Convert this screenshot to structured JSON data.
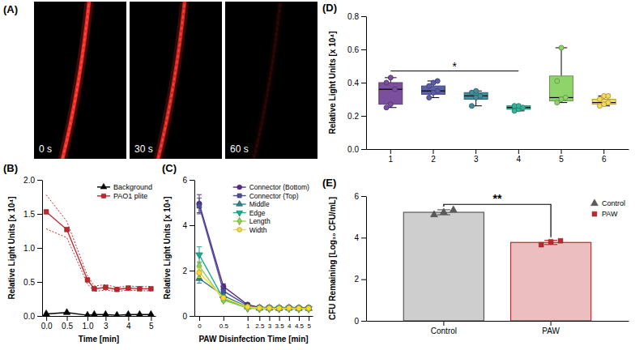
{
  "chart_data": [
    {
      "type": "image",
      "panel_label": "(A)",
      "labels": [
        "0 s",
        "30 s",
        "60 s"
      ]
    },
    {
      "type": "line",
      "panel_label": "(B)",
      "x_label": "Time [min]",
      "y_label": "Relative Light Units [x 10⁴]",
      "x": [
        0,
        0.5,
        1,
        2.5,
        3,
        3.5,
        4,
        4.5,
        5
      ],
      "series": [
        {
          "name": "Background",
          "color": "#000000",
          "marker": "triangle",
          "values": [
            0.03,
            0.05,
            0.01,
            0.02,
            0.02,
            0.01,
            0.02,
            0.02,
            0.02
          ]
        },
        {
          "name": "PAO1 plite",
          "color": "#c0272d",
          "marker": "square",
          "values": [
            1.53,
            1.27,
            0.53,
            0.4,
            0.42,
            0.39,
            0.41,
            0.4,
            0.4
          ],
          "errors": [
            0.25,
            0.12,
            0.06,
            0.04,
            0.04,
            0.03,
            0.03,
            0.03,
            0.03
          ]
        }
      ],
      "xlim": [
        -0.1,
        5.2
      ],
      "xticks": [
        {
          "value": 0,
          "label": "0.0"
        },
        {
          "value": 0.5,
          "label": "0.5"
        },
        {
          "value": 1,
          "label": "1.0"
        },
        3,
        4,
        5
      ],
      "ylim": [
        0,
        2
      ],
      "yticks": [
        {
          "value": 0,
          "label": "0.0"
        },
        {
          "value": 0.5,
          "label": "0.5"
        },
        {
          "value": 1,
          "label": "1.0"
        },
        {
          "value": 1.5,
          "label": "1.5"
        },
        {
          "value": 2,
          "label": "2.0"
        }
      ],
      "legend": "upper right"
    },
    {
      "type": "line",
      "panel_label": "(C)",
      "x_label": "PAW Disinfection Time [min]",
      "y_label": "Relative Light Units [x 10⁴]",
      "x": [
        0,
        0.5,
        1,
        2.5,
        3,
        3.5,
        4,
        4.5,
        5
      ],
      "series": [
        {
          "name": "Connector (Bottom)",
          "color": "#5b2a86",
          "marker": "circle",
          "values": [
            4.95,
            1.3,
            0.5,
            0.38,
            0.38,
            0.37,
            0.38,
            0.37,
            0.37
          ],
          "errors": [
            0.4,
            0.12,
            0.05,
            0.04,
            0.04,
            0.04,
            0.04,
            0.04,
            0.04
          ]
        },
        {
          "name": "Connector (Top)",
          "color": "#4b4f9e",
          "marker": "square",
          "values": [
            4.85,
            1.1,
            0.45,
            0.36,
            0.36,
            0.35,
            0.36,
            0.35,
            0.35
          ],
          "errors": [
            0.35,
            0.1,
            0.05,
            0.04,
            0.04,
            0.04,
            0.04,
            0.04,
            0.04
          ]
        },
        {
          "name": "Middle",
          "color": "#2f7f8f",
          "marker": "triangle",
          "values": [
            1.65,
            0.9,
            0.4,
            0.34,
            0.34,
            0.33,
            0.34,
            0.33,
            0.33
          ],
          "errors": [
            0.2,
            0.08,
            0.04,
            0.03,
            0.03,
            0.03,
            0.03,
            0.03,
            0.03
          ]
        },
        {
          "name": "Edge",
          "color": "#22a98f",
          "marker": "triangle-down",
          "values": [
            2.7,
            0.75,
            0.35,
            0.33,
            0.33,
            0.32,
            0.33,
            0.32,
            0.32
          ],
          "errors": [
            0.35,
            0.08,
            0.04,
            0.03,
            0.03,
            0.03,
            0.03,
            0.03,
            0.03
          ]
        },
        {
          "name": "Length",
          "color": "#8fd14f",
          "marker": "diamond",
          "values": [
            2.2,
            0.7,
            0.35,
            0.33,
            0.33,
            0.33,
            0.33,
            0.32,
            0.32
          ],
          "errors": [
            0.2,
            0.08,
            0.04,
            0.03,
            0.03,
            0.03,
            0.03,
            0.03,
            0.03
          ]
        },
        {
          "name": "Width",
          "color": "#f5dc32",
          "marker": "circle",
          "values": [
            1.9,
            0.8,
            0.4,
            0.35,
            0.35,
            0.34,
            0.35,
            0.34,
            0.34
          ],
          "errors": [
            0.2,
            0.08,
            0.04,
            0.03,
            0.03,
            0.03,
            0.03,
            0.03,
            0.03
          ]
        }
      ],
      "xlim": [
        -0.1,
        5.2
      ],
      "xticks": [
        0,
        0.5,
        1,
        2.5,
        3,
        3.5,
        4,
        4.5,
        5
      ],
      "ylim": [
        0,
        6
      ],
      "yticks": [
        0,
        2,
        4,
        6
      ],
      "legend": "upper right"
    },
    {
      "type": "box",
      "panel_label": "(D)",
      "y_label": "Relative Light Units [x 10⁴]",
      "categories": [
        "1",
        "2",
        "3",
        "4",
        "5",
        "6"
      ],
      "colors": [
        "#7b4f9e",
        "#5c5fa8",
        "#3f8f9c",
        "#35b49c",
        "#8fd46a",
        "#f4d95c"
      ],
      "boxes": [
        {
          "min": 0.25,
          "q1": 0.27,
          "median": 0.36,
          "q3": 0.4,
          "max": 0.43,
          "points": [
            0.25,
            0.27,
            0.36,
            0.4,
            0.43
          ]
        },
        {
          "min": 0.31,
          "q1": 0.33,
          "median": 0.35,
          "q3": 0.38,
          "max": 0.41,
          "points": [
            0.31,
            0.34,
            0.35,
            0.38,
            0.4,
            0.41
          ]
        },
        {
          "min": 0.26,
          "q1": 0.3,
          "median": 0.32,
          "q3": 0.34,
          "max": 0.35,
          "points": [
            0.26,
            0.31,
            0.32,
            0.34,
            0.35
          ]
        },
        {
          "min": 0.23,
          "q1": 0.24,
          "median": 0.25,
          "q3": 0.26,
          "max": 0.26,
          "points": [
            0.23,
            0.24,
            0.25,
            0.26,
            0.26
          ]
        },
        {
          "min": 0.28,
          "q1": 0.29,
          "median": 0.31,
          "q3": 0.44,
          "max": 0.61,
          "points": [
            0.28,
            0.3,
            0.31,
            0.41,
            0.61
          ]
        },
        {
          "min": 0.26,
          "q1": 0.27,
          "median": 0.28,
          "q3": 0.3,
          "max": 0.32,
          "points": [
            0.26,
            0.27,
            0.28,
            0.3,
            0.32,
            0.32
          ]
        }
      ],
      "ylim": [
        0,
        0.8
      ],
      "yticks": [
        {
          "value": 0,
          "label": "0.0"
        },
        {
          "value": 0.2,
          "label": "0.2"
        },
        {
          "value": 0.4,
          "label": "0.4"
        },
        {
          "value": 0.6,
          "label": "0.6"
        },
        {
          "value": 0.8,
          "label": "0.8"
        }
      ],
      "annotations": [
        {
          "text": "*",
          "x1": "1",
          "x2": "4",
          "y": 0.47
        }
      ]
    },
    {
      "type": "bar",
      "panel_label": "(E)",
      "y_label": "CFU Remaining [Log₁₀ CFU/mL]",
      "categories": [
        "Control",
        "PAW"
      ],
      "values": [
        5.22,
        3.77
      ],
      "errors": [
        0.12,
        0.1
      ],
      "points": [
        [
          5.1,
          5.22,
          5.33
        ],
        [
          3.66,
          3.8,
          3.85
        ]
      ],
      "colors": [
        "#5a5a5a",
        "#c0272d"
      ],
      "ylim": [
        0,
        6
      ],
      "yticks": [
        0,
        2,
        4,
        6
      ],
      "legend": "upper right",
      "annotations": [
        {
          "text": "**",
          "x1": "Control",
          "x2": "PAW",
          "y": 5.6
        }
      ]
    }
  ]
}
